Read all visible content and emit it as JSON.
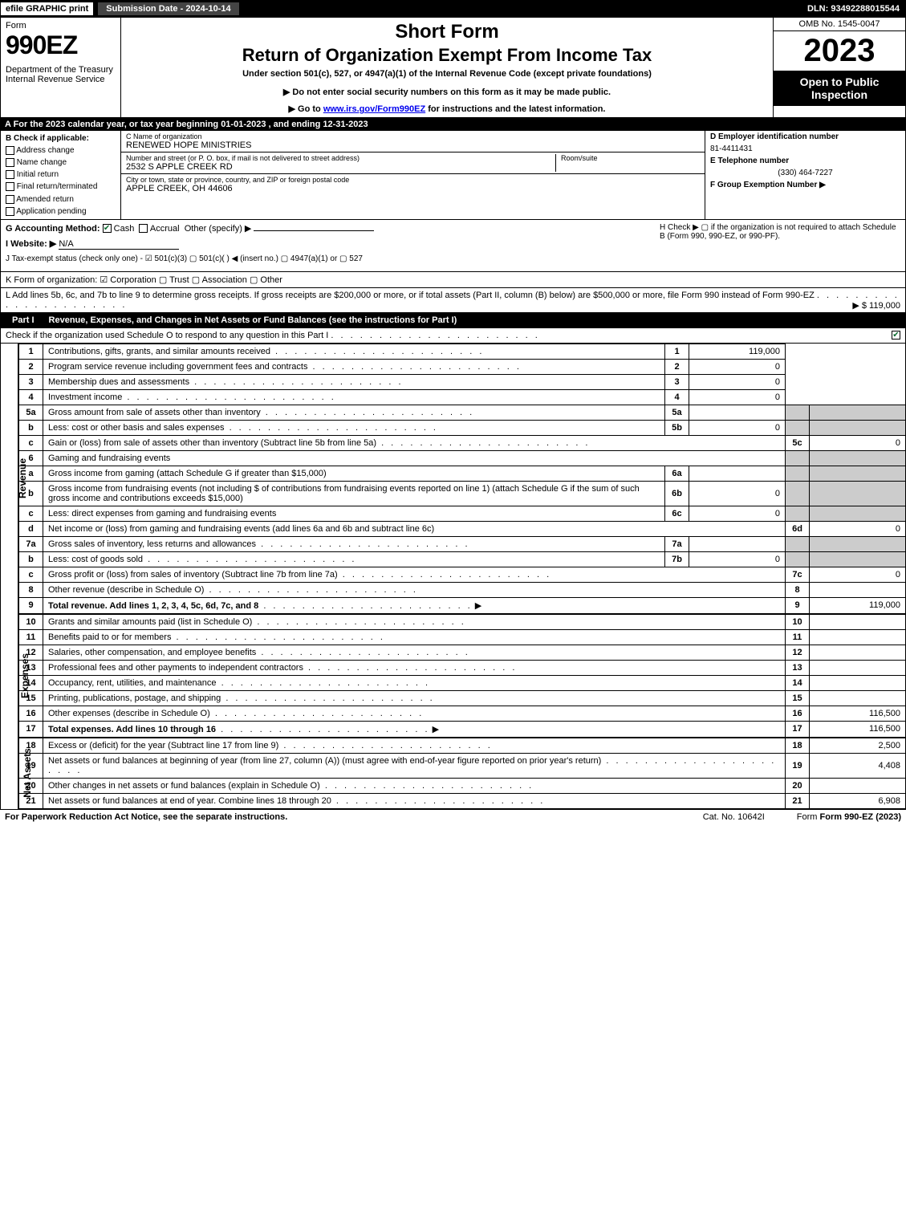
{
  "topbar": {
    "efile": "efile GRAPHIC print",
    "subdate": "Submission Date - 2024-10-14",
    "dln": "DLN: 93492288015544"
  },
  "header": {
    "form_word": "Form",
    "form_num": "990EZ",
    "dept": "Department of the Treasury\nInternal Revenue Service",
    "short": "Short Form",
    "return": "Return of Organization Exempt From Income Tax",
    "under": "Under section 501(c), 527, or 4947(a)(1) of the Internal Revenue Code (except private foundations)",
    "donot": "▶ Do not enter social security numbers on this form as it may be made public.",
    "goto_pre": "▶ Go to ",
    "goto_link": "www.irs.gov/Form990EZ",
    "goto_post": " for instructions and the latest information.",
    "omb": "OMB No. 1545-0047",
    "year": "2023",
    "open": "Open to Public Inspection"
  },
  "row_a": "A  For the 2023 calendar year, or tax year beginning 01-01-2023 , and ending 12-31-2023",
  "section_b": {
    "label": "B  Check if applicable:",
    "opts": [
      "Address change",
      "Name change",
      "Initial return",
      "Final return/terminated",
      "Amended return",
      "Application pending"
    ]
  },
  "section_c": {
    "name_label": "C Name of organization",
    "name": "RENEWED HOPE MINISTRIES",
    "street_label": "Number and street (or P. O. box, if mail is not delivered to street address)",
    "room_label": "Room/suite",
    "street": "2532 S APPLE CREEK RD",
    "city_label": "City or town, state or province, country, and ZIP or foreign postal code",
    "city": "APPLE CREEK, OH  44606"
  },
  "section_def": {
    "d_label": "D Employer identification number",
    "ein": "81-4411431",
    "e_label": "E Telephone number",
    "phone": "(330) 464-7227",
    "f_label": "F Group Exemption Number  ▶"
  },
  "g": {
    "label": "G Accounting Method:",
    "cash": "Cash",
    "accrual": "Accrual",
    "other": "Other (specify) ▶"
  },
  "h": "H  Check ▶  ▢  if the organization is not required to attach Schedule B (Form 990, 990-EZ, or 990-PF).",
  "i": {
    "label": "I Website: ▶",
    "value": "N/A"
  },
  "j": "J Tax-exempt status (check only one) -  ☑ 501(c)(3)  ▢ 501(c)(  ) ◀ (insert no.)  ▢ 4947(a)(1) or  ▢ 527",
  "k": "K Form of organization:   ☑ Corporation   ▢ Trust   ▢ Association   ▢ Other",
  "l": {
    "text": "L Add lines 5b, 6c, and 7b to line 9 to determine gross receipts. If gross receipts are $200,000 or more, or if total assets (Part II, column (B) below) are $500,000 or more, file Form 990 instead of Form 990-EZ",
    "amount": "▶ $ 119,000"
  },
  "part1": {
    "title": "Part I",
    "heading": "Revenue, Expenses, and Changes in Net Assets or Fund Balances (see the instructions for Part I)",
    "check_o": "Check if the organization used Schedule O to respond to any question in this Part I"
  },
  "sidelabels": {
    "revenue": "Revenue",
    "expenses": "Expenses",
    "netassets": "Net Assets"
  },
  "lines": {
    "1": {
      "n": "1",
      "d": "Contributions, gifts, grants, and similar amounts received",
      "v": "119,000"
    },
    "2": {
      "n": "2",
      "d": "Program service revenue including government fees and contracts",
      "v": "0"
    },
    "3": {
      "n": "3",
      "d": "Membership dues and assessments",
      "v": "0"
    },
    "4": {
      "n": "4",
      "d": "Investment income",
      "v": "0"
    },
    "5a": {
      "n": "5a",
      "d": "Gross amount from sale of assets other than inventory",
      "sl": "5a",
      "sv": ""
    },
    "5b": {
      "n": "b",
      "d": "Less: cost or other basis and sales expenses",
      "sl": "5b",
      "sv": "0"
    },
    "5c": {
      "n": "c",
      "d": "Gain or (loss) from sale of assets other than inventory (Subtract line 5b from line 5a)",
      "ll": "5c",
      "v": "0"
    },
    "6": {
      "n": "6",
      "d": "Gaming and fundraising events"
    },
    "6a": {
      "n": "a",
      "d": "Gross income from gaming (attach Schedule G if greater than $15,000)",
      "sl": "6a",
      "sv": ""
    },
    "6b": {
      "n": "b",
      "d": "Gross income from fundraising events (not including $               of contributions from fundraising events reported on line 1) (attach Schedule G if the sum of such gross income and contributions exceeds $15,000)",
      "sl": "6b",
      "sv": "0"
    },
    "6c": {
      "n": "c",
      "d": "Less: direct expenses from gaming and fundraising events",
      "sl": "6c",
      "sv": "0"
    },
    "6d": {
      "n": "d",
      "d": "Net income or (loss) from gaming and fundraising events (add lines 6a and 6b and subtract line 6c)",
      "ll": "6d",
      "v": "0"
    },
    "7a": {
      "n": "7a",
      "d": "Gross sales of inventory, less returns and allowances",
      "sl": "7a",
      "sv": ""
    },
    "7b": {
      "n": "b",
      "d": "Less: cost of goods sold",
      "sl": "7b",
      "sv": "0"
    },
    "7c": {
      "n": "c",
      "d": "Gross profit or (loss) from sales of inventory (Subtract line 7b from line 7a)",
      "ll": "7c",
      "v": "0"
    },
    "8": {
      "n": "8",
      "d": "Other revenue (describe in Schedule O)",
      "ll": "8",
      "v": ""
    },
    "9": {
      "n": "9",
      "d": "Total revenue. Add lines 1, 2, 3, 4, 5c, 6d, 7c, and 8",
      "ll": "9",
      "v": "119,000",
      "bold": true
    },
    "10": {
      "n": "10",
      "d": "Grants and similar amounts paid (list in Schedule O)",
      "ll": "10",
      "v": ""
    },
    "11": {
      "n": "11",
      "d": "Benefits paid to or for members",
      "ll": "11",
      "v": ""
    },
    "12": {
      "n": "12",
      "d": "Salaries, other compensation, and employee benefits",
      "ll": "12",
      "v": ""
    },
    "13": {
      "n": "13",
      "d": "Professional fees and other payments to independent contractors",
      "ll": "13",
      "v": ""
    },
    "14": {
      "n": "14",
      "d": "Occupancy, rent, utilities, and maintenance",
      "ll": "14",
      "v": ""
    },
    "15": {
      "n": "15",
      "d": "Printing, publications, postage, and shipping",
      "ll": "15",
      "v": ""
    },
    "16": {
      "n": "16",
      "d": "Other expenses (describe in Schedule O)",
      "ll": "16",
      "v": "116,500"
    },
    "17": {
      "n": "17",
      "d": "Total expenses. Add lines 10 through 16",
      "ll": "17",
      "v": "116,500",
      "bold": true
    },
    "18": {
      "n": "18",
      "d": "Excess or (deficit) for the year (Subtract line 17 from line 9)",
      "ll": "18",
      "v": "2,500"
    },
    "19": {
      "n": "19",
      "d": "Net assets or fund balances at beginning of year (from line 27, column (A)) (must agree with end-of-year figure reported on prior year's return)",
      "ll": "19",
      "v": "4,408"
    },
    "20": {
      "n": "20",
      "d": "Other changes in net assets or fund balances (explain in Schedule O)",
      "ll": "20",
      "v": ""
    },
    "21": {
      "n": "21",
      "d": "Net assets or fund balances at end of year. Combine lines 18 through 20",
      "ll": "21",
      "v": "6,908"
    }
  },
  "footer": {
    "paperwork": "For Paperwork Reduction Act Notice, see the separate instructions.",
    "catno": "Cat. No. 10642I",
    "formver": "Form 990-EZ (2023)"
  },
  "colors": {
    "black": "#000000",
    "white": "#ffffff",
    "shaded": "#cccccc",
    "checkgreen": "#0a6b2f",
    "link": "#0000ee"
  }
}
